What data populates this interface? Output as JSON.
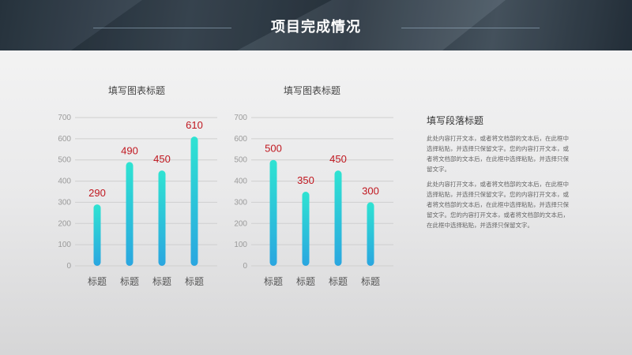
{
  "header": {
    "title": "项目完成情况"
  },
  "charts": [
    {
      "title": "填写图表标题"
    },
    {
      "title": "填写图表标题"
    }
  ],
  "paragraph": {
    "title": "填写段落标题",
    "text1": "此处内容打开文本，或者将文档部的文本后，在此框中选择粘贴，并选择只保留文字。您的内容打开文本，或者将文档部的文本后，在此框中选择粘贴，并选择只保留文字。",
    "text2": "此处内容打开文本，或者将文档部的文本后，在此框中选择粘贴，并选择只保留文字。您的内容打开文本，或者将文档部的文本后，在此框中选择粘贴，并选择只保留文字。您的内容打开文本，或者将文档部的文本后，在此框中选择粘贴，并选择只保留文字。"
  },
  "colors": {
    "bar_top": "#2fe3d2",
    "bar_bottom": "#2aa6e0",
    "value_label": "#c0171f",
    "grid": "#cfcfcf",
    "tick_text": "#9a9a9a",
    "category_text": "#555555"
  },
  "chart_data": [
    {
      "type": "bar",
      "title": "填写图表标题",
      "categories": [
        "标题",
        "标题",
        "标题",
        "标题"
      ],
      "values": [
        290,
        490,
        450,
        610
      ],
      "ylim": [
        0,
        700
      ],
      "yticks": [
        0,
        100,
        200,
        300,
        400,
        500,
        600,
        700
      ],
      "grid": true
    },
    {
      "type": "bar",
      "title": "填写图表标题",
      "categories": [
        "标题",
        "标题",
        "标题",
        "标题"
      ],
      "values": [
        500,
        350,
        450,
        300
      ],
      "ylim": [
        0,
        700
      ],
      "yticks": [
        0,
        100,
        200,
        300,
        400,
        500,
        600,
        700
      ],
      "grid": true
    }
  ]
}
